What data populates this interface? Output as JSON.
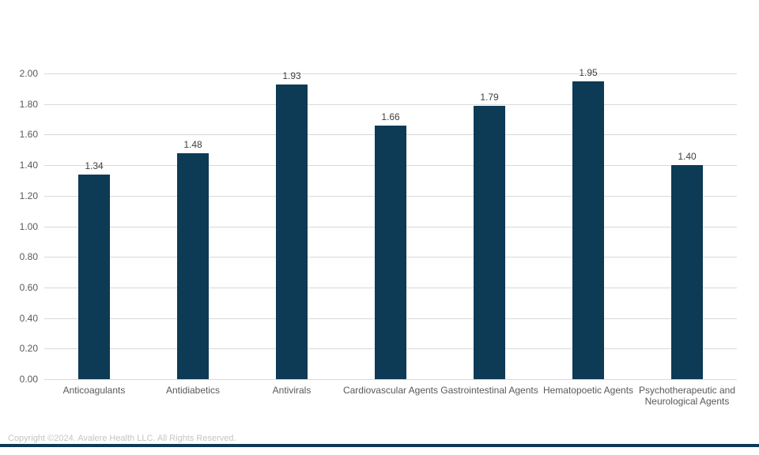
{
  "chart_data": {
    "type": "bar",
    "title": "",
    "xlabel": "",
    "ylabel": "",
    "categories": [
      "Anticoagulants",
      "Antidiabetics",
      "Antivirals",
      "Cardiovascular Agents",
      "Gastrointestinal Agents",
      "Hematopoetic Agents",
      "Psychotherapeutic and Neurological Agents"
    ],
    "values": [
      1.34,
      1.48,
      1.93,
      1.66,
      1.79,
      1.95,
      1.4
    ],
    "value_labels": [
      "1.34",
      "1.48",
      "1.93",
      "1.66",
      "1.79",
      "1.95",
      "1.40"
    ],
    "ylim": [
      0.0,
      2.0
    ],
    "ytick_step": 0.2,
    "ytick_labels": [
      "0.00",
      "0.20",
      "0.40",
      "0.60",
      "0.80",
      "1.00",
      "1.20",
      "1.40",
      "1.60",
      "1.80",
      "2.00"
    ],
    "grid": true,
    "legend": "none",
    "colors": {
      "bar": "#0d3a55",
      "gridline": "#d9d9d9",
      "ytick_text": "#595959",
      "category_text": "#595959",
      "value_label_text": "#404040"
    }
  },
  "footer": {
    "copyright": "Copyright ©2024. Avalere Health LLC. All Rights Reserved.",
    "copyright_color": "#c5c5c5",
    "rule_color": "#0d3a55"
  }
}
